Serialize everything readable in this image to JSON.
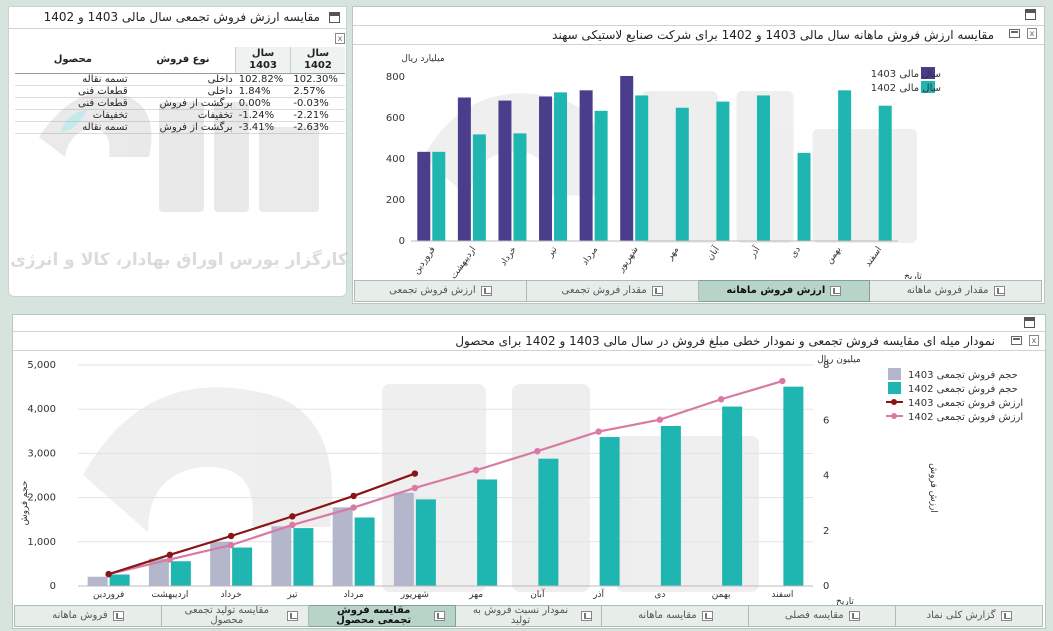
{
  "table_panel": {
    "title": "مقایسه ارزش فروش تجمعی سال مالی 1403 و 1402",
    "headers": {
      "product": "محصول",
      "sale_type": "نوع فروش",
      "y1403": "سال 1403",
      "y1402": "سال 1402"
    },
    "rows": [
      {
        "product": "تسمه نقاله",
        "sale_type": "داخلی",
        "y1403": "102.82%",
        "y1402": "102.30%"
      },
      {
        "product": "قطعات فنی",
        "sale_type": "داخلی",
        "y1403": "1.84%",
        "y1402": "2.57%"
      },
      {
        "product": "قطعات فنی",
        "sale_type": "برگشت از فروش",
        "y1403": "0.00%",
        "y1402": "-0.03%"
      },
      {
        "product": "تخفیفات",
        "sale_type": "تخفیفات",
        "y1403": "-1.24%",
        "y1402": "-2.21%"
      },
      {
        "product": "تسمه نقاله",
        "sale_type": "برگشت از فروش",
        "y1403": "-3.41%",
        "y1402": "-2.63%"
      }
    ],
    "watermark": "کارگزار بورس اوراق بهادار، کالا و انرژی"
  },
  "monthly_panel": {
    "title": "مقایسه ارزش فروش ماهانه سال مالی 1403 و 1402 برای شرکت صنایع لاستیکی سهند",
    "tabs": [
      {
        "label": "مقدار فروش ماهانه",
        "icon": "bar-chart-icon"
      },
      {
        "label": "ارزش فروش ماهانه",
        "icon": "bar-chart-icon",
        "active": true
      },
      {
        "label": "مقدار فروش تجمعی",
        "icon": "line-chart-icon"
      },
      {
        "label": "ارزش فروش تجمعی",
        "icon": "line-chart-icon"
      }
    ]
  },
  "cumulative_panel": {
    "title": "نمودار میله ای مقایسه فروش تجمعی و نمودار خطی مبلغ فروش در سال مالی 1403 و 1402 برای محصول",
    "tabs": [
      {
        "label": "گزارش کلی نماد",
        "icon": "report-icon"
      },
      {
        "label": "مقایسه فصلی",
        "icon": "bar-chart-icon"
      },
      {
        "label": "مقایسه ماهانه",
        "icon": "bar-chart-icon"
      },
      {
        "label": "نمودار نسبت فروش به تولید",
        "icon": "bar-chart-icon"
      },
      {
        "label": "مقایسه فروش تجمعی محصول",
        "icon": "bar-chart-icon",
        "active": true
      },
      {
        "label": "مقایسه تولید تجمعی محصول",
        "icon": "bar-chart-icon"
      },
      {
        "label": "فروش ماهانه",
        "icon": "bar-chart-icon"
      }
    ]
  },
  "colors": {
    "s1403": "#4a3e8c",
    "s1402": "#1fb5b0",
    "bar1403_light": "#b4b6cc",
    "line1403": "#8b1414",
    "line1402": "#d97aa4",
    "tab_active": "#b8d3c8"
  },
  "chart_data": [
    {
      "type": "bar",
      "categories": [
        "فروردین",
        "اردیبهشت",
        "خرداد",
        "تیر",
        "مرداد",
        "شهریور",
        "مهر",
        "آبان",
        "آذر",
        "دی",
        "بهمن",
        "اسفند"
      ],
      "series": [
        {
          "name": "سال مالی 1403",
          "values": [
            435,
            700,
            685,
            705,
            735,
            805,
            null,
            null,
            null,
            null,
            null,
            null
          ]
        },
        {
          "name": "سال مالی 1402",
          "values": [
            435,
            520,
            525,
            725,
            635,
            710,
            650,
            680,
            710,
            430,
            735,
            660
          ]
        }
      ],
      "ylabel": "میلیارد ریال",
      "xlabel": "تاریخ",
      "ylim": [
        0,
        800
      ],
      "yticks": [
        0,
        200,
        400,
        600,
        800
      ],
      "legend": "top-right"
    },
    {
      "type": "bar",
      "categories": [
        "فروردین",
        "اردیبهشت",
        "خرداد",
        "تیر",
        "مرداد",
        "شهریور",
        "مهر",
        "آبان",
        "آذر",
        "دی",
        "بهمن",
        "اسفند"
      ],
      "series": [
        {
          "name": "حجم فروش تجمعی 1403",
          "kind": "bar",
          "axis": "left",
          "values": [
            210,
            620,
            1000,
            1350,
            1780,
            2110,
            null,
            null,
            null,
            null,
            null,
            null
          ]
        },
        {
          "name": "حجم فروش تجمعی 1402",
          "kind": "bar",
          "axis": "left",
          "values": [
            260,
            560,
            870,
            1310,
            1550,
            1960,
            2410,
            2880,
            3370,
            3620,
            4060,
            4510
          ]
        },
        {
          "name": "ارزش فروش تجمعی 1403",
          "kind": "line",
          "axis": "right",
          "values": [
            0.43,
            1.13,
            1.81,
            2.52,
            3.26,
            4.07,
            null,
            null,
            null,
            null,
            null,
            null
          ]
        },
        {
          "name": "ارزش فروش تجمعی 1402",
          "kind": "line",
          "axis": "right",
          "values": [
            0.43,
            0.96,
            1.48,
            2.21,
            2.84,
            3.55,
            4.19,
            4.88,
            5.59,
            6.02,
            6.76,
            7.42
          ]
        }
      ],
      "ylabel": "حجم فروش",
      "y2label": "ارزش فروش",
      "y2unit": "میلیون ریال",
      "xlabel": "تاریخ",
      "ylim": [
        0,
        5000
      ],
      "yticks": [
        "0",
        "1,000",
        "2,000",
        "3,000",
        "4,000",
        "5,000"
      ],
      "y2lim": [
        0,
        8
      ],
      "y2ticks": [
        0,
        2,
        4,
        6,
        8
      ],
      "legend": "top-right"
    }
  ]
}
